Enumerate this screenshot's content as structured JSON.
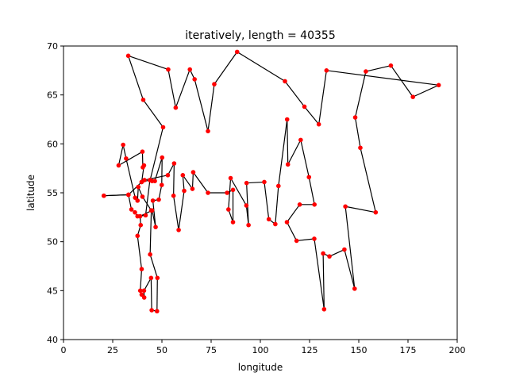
{
  "chart_data": {
    "type": "line",
    "title": "iteratively, length = 40355",
    "xlabel": "longitude",
    "ylabel": "latitude",
    "xlim": [
      0,
      200
    ],
    "ylim": [
      40,
      70
    ],
    "xticks": [
      0,
      25,
      50,
      75,
      100,
      125,
      150,
      175,
      200
    ],
    "yticks": [
      40,
      45,
      50,
      55,
      60,
      65,
      70
    ],
    "grid": false,
    "line_color": "#000000",
    "marker_color": "#ff0000",
    "route": [
      [
        20.5,
        54.7
      ],
      [
        33.0,
        54.8
      ],
      [
        34.5,
        53.3
      ],
      [
        36.3,
        53.0
      ],
      [
        37.6,
        52.6
      ],
      [
        41.7,
        52.7
      ],
      [
        43.9,
        56.3
      ],
      [
        45.0,
        56.2
      ],
      [
        46.4,
        56.2
      ],
      [
        50.1,
        58.6
      ],
      [
        49.9,
        55.8
      ],
      [
        48.4,
        54.3
      ],
      [
        45.4,
        54.2
      ],
      [
        46.8,
        51.5
      ],
      [
        45.0,
        53.2
      ],
      [
        38.9,
        52.6
      ],
      [
        39.2,
        51.7
      ],
      [
        37.6,
        50.6
      ],
      [
        39.7,
        47.2
      ],
      [
        39.0,
        45.0
      ],
      [
        39.7,
        44.6
      ],
      [
        41.0,
        44.3
      ],
      [
        40.9,
        45.0
      ],
      [
        44.5,
        46.3
      ],
      [
        44.8,
        43.0
      ],
      [
        47.5,
        42.9
      ],
      [
        47.7,
        46.3
      ],
      [
        44.0,
        48.7
      ],
      [
        44.6,
        53.2
      ],
      [
        40.1,
        54.6
      ],
      [
        38.0,
        55.6
      ],
      [
        37.6,
        54.2
      ],
      [
        36.4,
        54.5
      ],
      [
        31.8,
        58.5
      ],
      [
        30.3,
        59.9
      ],
      [
        28.0,
        57.8
      ],
      [
        40.1,
        59.2
      ],
      [
        40.3,
        57.6
      ],
      [
        40.9,
        57.8
      ],
      [
        39.7,
        56.1
      ],
      [
        41.1,
        56.3
      ],
      [
        53.0,
        56.8
      ],
      [
        56.2,
        58.0
      ],
      [
        55.9,
        54.7
      ],
      [
        58.5,
        51.2
      ],
      [
        61.3,
        55.2
      ],
      [
        60.6,
        56.8
      ],
      [
        65.5,
        55.4
      ],
      [
        65.9,
        57.1
      ],
      [
        73.4,
        55.0
      ],
      [
        83.1,
        55.0
      ],
      [
        86.1,
        55.3
      ],
      [
        86.1,
        52.0
      ],
      [
        83.8,
        53.3
      ],
      [
        84.9,
        56.5
      ],
      [
        92.9,
        53.7
      ],
      [
        94.0,
        51.7
      ],
      [
        93.0,
        56.0
      ],
      [
        102.0,
        56.1
      ],
      [
        104.3,
        52.3
      ],
      [
        107.6,
        51.8
      ],
      [
        109.2,
        55.7
      ],
      [
        113.6,
        62.5
      ],
      [
        114.0,
        57.9
      ],
      [
        120.5,
        60.4
      ],
      [
        124.7,
        56.6
      ],
      [
        127.5,
        53.8
      ],
      [
        120.0,
        53.8
      ],
      [
        113.5,
        52.0
      ],
      [
        118.4,
        50.1
      ],
      [
        127.4,
        50.3
      ],
      [
        132.4,
        43.1
      ],
      [
        131.9,
        48.8
      ],
      [
        135.1,
        48.5
      ],
      [
        142.7,
        49.2
      ],
      [
        147.9,
        45.2
      ],
      [
        143.2,
        53.6
      ],
      [
        158.6,
        53.0
      ],
      [
        150.8,
        59.6
      ],
      [
        148.2,
        62.7
      ],
      [
        153.6,
        67.4
      ],
      [
        166.3,
        68.0
      ],
      [
        177.5,
        64.8
      ],
      [
        190.6,
        66.0
      ],
      [
        133.6,
        67.5
      ],
      [
        129.7,
        62.0
      ],
      [
        122.4,
        63.8
      ],
      [
        112.5,
        66.4
      ],
      [
        88.2,
        69.4
      ],
      [
        76.6,
        66.1
      ],
      [
        73.4,
        61.3
      ],
      [
        66.6,
        66.6
      ],
      [
        64.2,
        67.6
      ],
      [
        57.0,
        63.7
      ],
      [
        53.2,
        67.6
      ],
      [
        32.9,
        69.0
      ],
      [
        40.5,
        64.5
      ],
      [
        50.6,
        61.7
      ],
      [
        44.0,
        56.3
      ],
      [
        39.7,
        56.1
      ],
      [
        33.0,
        54.8
      ],
      [
        20.5,
        54.7
      ]
    ]
  }
}
